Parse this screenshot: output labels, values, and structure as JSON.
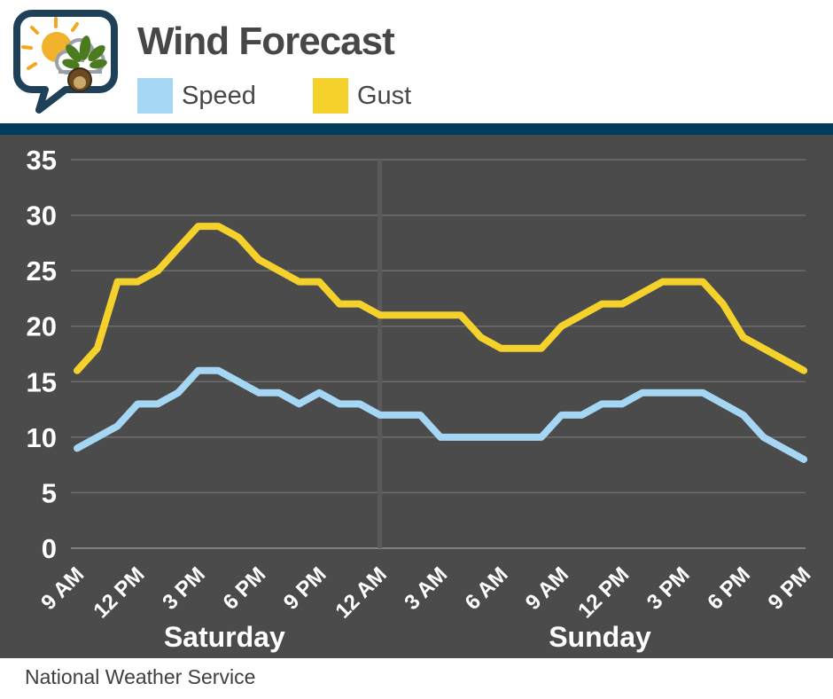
{
  "header": {
    "title": "Wind Forecast"
  },
  "legend": [
    {
      "label": "Speed",
      "color": "#A5D7F5"
    },
    {
      "label": "Gust",
      "color": "#F5D22B"
    }
  ],
  "footer": {
    "attribution": "National Weather Service"
  },
  "colors": {
    "chart_bg": "#4B4B4B",
    "header_bar": "#003B5C",
    "grid": "#6E6E6E",
    "zero_axis": "#808080",
    "midnight_divider": "#5A5A5A",
    "axis_text": "#FFFFFF",
    "speed": "#A5D7F5",
    "gust": "#F5D22B"
  },
  "chart_data": {
    "type": "line",
    "title": "Wind Forecast",
    "x_description": "Hourly, Saturday 9 AM through Sunday 9 PM",
    "x_tick_labels": [
      "9 AM",
      "12 PM",
      "3 PM",
      "6 PM",
      "9 PM",
      "12 AM",
      "3 AM",
      "6 AM",
      "9 AM",
      "12 PM",
      "3 PM",
      "6 PM",
      "9 PM"
    ],
    "x_tick_positions": [
      0,
      3,
      6,
      9,
      12,
      15,
      18,
      21,
      24,
      27,
      30,
      33,
      36
    ],
    "day_labels": [
      {
        "label": "Saturday",
        "center_hour": 7.3
      },
      {
        "label": "Sunday",
        "center_hour": 25.9
      }
    ],
    "midnight_divider_hour": 15,
    "ylim": [
      0,
      35
    ],
    "yticks": [
      0,
      5,
      10,
      15,
      20,
      25,
      30,
      35
    ],
    "grid": true,
    "legend_position": "top",
    "series": [
      {
        "name": "Speed",
        "values": [
          9,
          10,
          11,
          13,
          13,
          14,
          16,
          16,
          15,
          14,
          14,
          13,
          14,
          13,
          13,
          12,
          12,
          12,
          10,
          10,
          10,
          10,
          10,
          10,
          12,
          12,
          13,
          13,
          14,
          14,
          14,
          14,
          13,
          12,
          10,
          9,
          8
        ]
      },
      {
        "name": "Gust",
        "values": [
          16,
          18,
          24,
          24,
          25,
          27,
          29,
          29,
          28,
          26,
          25,
          24,
          24,
          22,
          22,
          21,
          21,
          21,
          21,
          21,
          19,
          18,
          18,
          18,
          20,
          21,
          22,
          22,
          23,
          24,
          24,
          24,
          22,
          19,
          18,
          17,
          16
        ]
      }
    ]
  }
}
